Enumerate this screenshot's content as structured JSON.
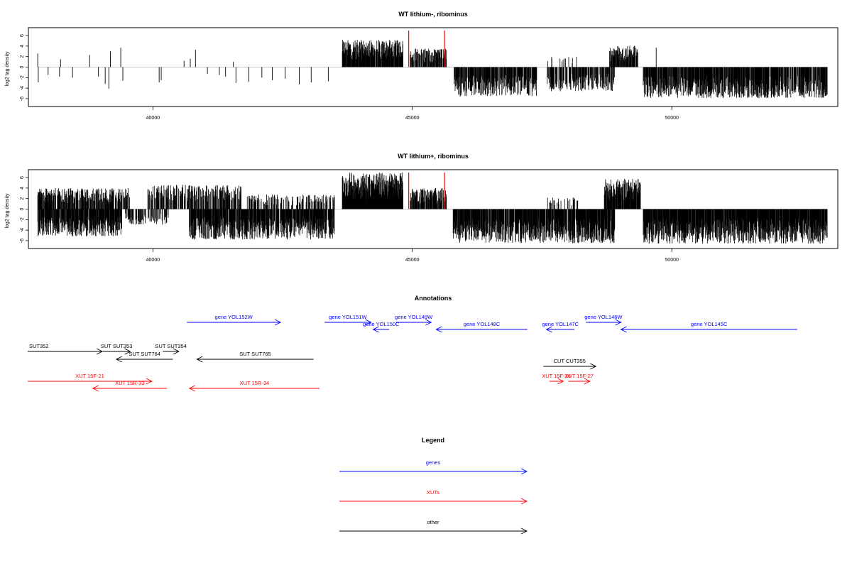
{
  "colors": {
    "genes": "#0000ff",
    "xuts": "#ff0000",
    "other": "#000000",
    "marker": "#ff0000"
  },
  "chart_data": [
    {
      "type": "bar",
      "title": "WT lithium-, ribominus",
      "ylabel": "log2 tag density",
      "xlim": [
        37600,
        53200
      ],
      "ylim": [
        -7.5,
        7.5
      ],
      "xticks": [
        40000,
        45000,
        50000
      ],
      "yticks": [
        -6,
        -4,
        -2,
        0,
        2,
        4,
        6
      ],
      "markers_x": [
        44930,
        45620
      ],
      "plus_strand_regions": [
        {
          "x": [
            43650,
            44820
          ],
          "max": 5.2,
          "density": 0.9
        },
        {
          "x": [
            44960,
            45660
          ],
          "max": 3.6,
          "density": 0.7
        },
        {
          "x": [
            47600,
            48200
          ],
          "max": 2.0,
          "density": 0.15
        },
        {
          "x": [
            48800,
            49350
          ],
          "max": 4.2,
          "density": 0.8
        }
      ],
      "minus_strand_regions": [
        {
          "x": [
            45800,
            47400
          ],
          "max": -5.6,
          "density": 0.8
        },
        {
          "x": [
            47600,
            48900
          ],
          "max": -4.6,
          "density": 0.7
        },
        {
          "x": [
            49450,
            53000
          ],
          "max": -5.9,
          "density": 0.85
        }
      ],
      "sparse_plus": [
        [
          37780,
          2.6
        ],
        [
          38220,
          1.5
        ],
        [
          38780,
          2.3
        ],
        [
          39180,
          3.0
        ],
        [
          39380,
          3.7
        ],
        [
          40600,
          1.2
        ],
        [
          40720,
          1.6
        ],
        [
          40820,
          3.3
        ],
        [
          41550,
          1.0
        ],
        [
          49700,
          3.7
        ]
      ],
      "sparse_minus": [
        [
          37790,
          -2.9
        ],
        [
          37980,
          -1.5
        ],
        [
          38200,
          -1.8
        ],
        [
          38450,
          -2.0
        ],
        [
          38950,
          -1.8
        ],
        [
          39080,
          -3.2
        ],
        [
          39150,
          -4.1
        ],
        [
          39420,
          -2.6
        ],
        [
          40120,
          -2.9
        ],
        [
          40160,
          -2.5
        ],
        [
          41050,
          -1.3
        ],
        [
          41280,
          -1.5
        ],
        [
          41400,
          -1.8
        ],
        [
          41600,
          -3.0
        ],
        [
          41850,
          -2.8
        ],
        [
          42100,
          -2.0
        ],
        [
          42300,
          -2.5
        ],
        [
          42550,
          -2.2
        ],
        [
          42820,
          -3.3
        ],
        [
          43050,
          -2.9
        ],
        [
          43380,
          -2.7
        ]
      ]
    },
    {
      "type": "bar",
      "title": "WT lithium+, ribominus",
      "ylabel": "log2 tag density",
      "xlim": [
        37600,
        53200
      ],
      "ylim": [
        -7.5,
        7.5
      ],
      "xticks": [
        40000,
        45000,
        50000
      ],
      "yticks": [
        -6,
        -4,
        -2,
        0,
        2,
        4,
        6
      ],
      "markers_x": [
        44930,
        45620
      ],
      "plus_strand_regions": [
        {
          "x": [
            37780,
            39550
          ],
          "max": 4.0,
          "density": 0.7
        },
        {
          "x": [
            39900,
            41700
          ],
          "max": 4.6,
          "density": 0.6
        },
        {
          "x": [
            41800,
            43500
          ],
          "max": 2.8,
          "density": 0.4
        },
        {
          "x": [
            43650,
            44820
          ],
          "max": 7.0,
          "density": 1.0
        },
        {
          "x": [
            44960,
            45660
          ],
          "max": 4.0,
          "density": 0.8
        },
        {
          "x": [
            47600,
            48200
          ],
          "max": 2.2,
          "density": 0.3
        },
        {
          "x": [
            48700,
            49400
          ],
          "max": 5.8,
          "density": 0.9
        }
      ],
      "minus_strand_regions": [
        {
          "x": [
            37780,
            39400
          ],
          "max": -5.2,
          "density": 0.9
        },
        {
          "x": [
            39450,
            40300
          ],
          "max": -3.0,
          "density": 0.5
        },
        {
          "x": [
            40700,
            43500
          ],
          "max": -5.8,
          "density": 0.85
        },
        {
          "x": [
            45780,
            48900
          ],
          "max": -6.5,
          "density": 0.9
        },
        {
          "x": [
            49450,
            53000
          ],
          "max": -6.6,
          "density": 0.95
        }
      ],
      "sparse_plus": [],
      "sparse_minus": []
    },
    {
      "type": "table",
      "title": "Annotations",
      "features": [
        {
          "label": "gene YOL152W",
          "category": "genes",
          "start": 40780,
          "end": 42650,
          "strand": "+",
          "track": 1
        },
        {
          "label": "gene YOL151W",
          "category": "genes",
          "start": 43530,
          "end": 44460,
          "strand": "+",
          "track": 1
        },
        {
          "label": "gene YOL149W",
          "category": "genes",
          "start": 44960,
          "end": 45660,
          "strand": "+",
          "track": 1
        },
        {
          "label": "gene YOL146W",
          "category": "genes",
          "start": 48750,
          "end": 49450,
          "strand": "+",
          "track": 1
        },
        {
          "label": "gene YOL150C",
          "category": "genes",
          "start": 44500,
          "end": 44820,
          "strand": "-",
          "track": 2
        },
        {
          "label": "gene YOL148C",
          "category": "genes",
          "start": 45760,
          "end": 47580,
          "strand": "-",
          "track": 2
        },
        {
          "label": "gene YOL147C",
          "category": "genes",
          "start": 47960,
          "end": 48520,
          "strand": "-",
          "track": 2
        },
        {
          "label": "gene YOL145C",
          "category": "genes",
          "start": 49450,
          "end": 52970,
          "strand": "-",
          "track": 2
        },
        {
          "label": "SUT352",
          "category": "other",
          "start": 37600,
          "end": 39090,
          "strand": "+",
          "track": 3
        },
        {
          "label": "SUT SUT353",
          "category": "other",
          "start": 39100,
          "end": 39650,
          "strand": "+",
          "track": 3
        },
        {
          "label": "SUT SUT354",
          "category": "other",
          "start": 40300,
          "end": 40620,
          "strand": "+",
          "track": 3
        },
        {
          "label": "CUT CUT355",
          "category": "other",
          "start": 47900,
          "end": 48950,
          "strand": "+",
          "track": 5
        },
        {
          "label": "SUT SUT764",
          "category": "other",
          "start": 39370,
          "end": 40500,
          "strand": "-",
          "track": 4
        },
        {
          "label": "SUT SUT765",
          "category": "other",
          "start": 40980,
          "end": 43310,
          "strand": "-",
          "track": 4
        },
        {
          "label": "XUT 15F-21",
          "category": "xuts",
          "start": 37600,
          "end": 40080,
          "strand": "+",
          "track": 6
        },
        {
          "label": "XUT 15F-26",
          "category": "xuts",
          "start": 48020,
          "end": 48300,
          "strand": "+",
          "track": 6
        },
        {
          "label": "XUT 15F-27",
          "category": "xuts",
          "start": 48400,
          "end": 48830,
          "strand": "+",
          "track": 6
        },
        {
          "label": "XUT 15R-33",
          "category": "xuts",
          "start": 38900,
          "end": 40380,
          "strand": "-",
          "track": 7
        },
        {
          "label": "XUT 15R-34",
          "category": "xuts",
          "start": 40830,
          "end": 43430,
          "strand": "-",
          "track": 7
        }
      ]
    },
    {
      "type": "table",
      "title": "Legend",
      "entries": [
        {
          "label": "genes",
          "category": "genes"
        },
        {
          "label": "XUTs",
          "category": "xuts"
        },
        {
          "label": "other",
          "category": "other"
        }
      ]
    }
  ]
}
